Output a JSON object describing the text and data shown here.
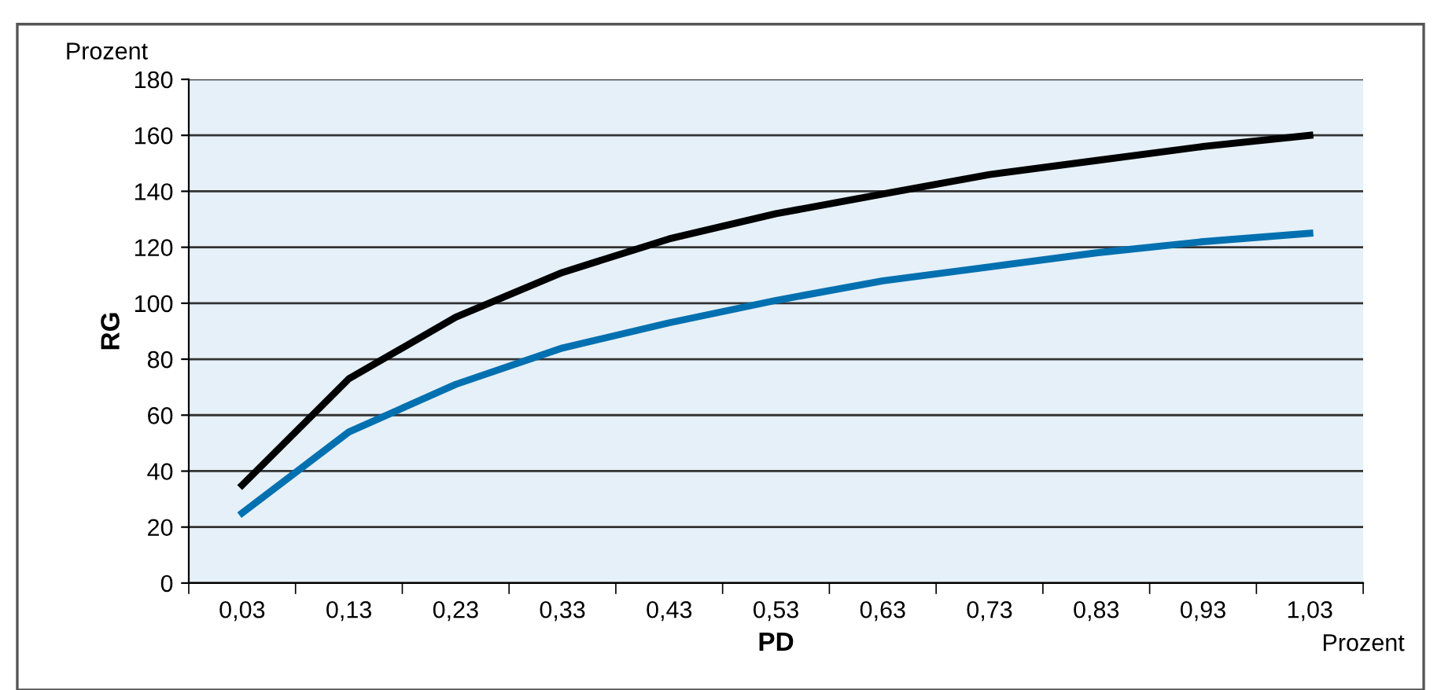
{
  "chart_data": {
    "type": "line",
    "xlabel": "PD",
    "ylabel": "RG",
    "annotations": [
      "Prozent",
      "Prozent"
    ],
    "categories": [
      "0,03",
      "0,13",
      "0,23",
      "0,33",
      "0,43",
      "0,53",
      "0,63",
      "0,73",
      "0,83",
      "0,93",
      "1,03"
    ],
    "series": [
      {
        "color": "#000000",
        "values": [
          35,
          73,
          95,
          111,
          123,
          132,
          139,
          146,
          151,
          156,
          160
        ]
      },
      {
        "color": "#0070b0",
        "values": [
          25,
          54,
          71,
          84,
          93,
          101,
          108,
          113,
          118,
          122,
          125
        ]
      }
    ],
    "ylim": [
      0,
      180
    ],
    "yticks": [
      0,
      20,
      40,
      60,
      80,
      100,
      120,
      140,
      160,
      180
    ],
    "grid": "y",
    "legend": false,
    "marker": "none",
    "line_style": "solid"
  }
}
